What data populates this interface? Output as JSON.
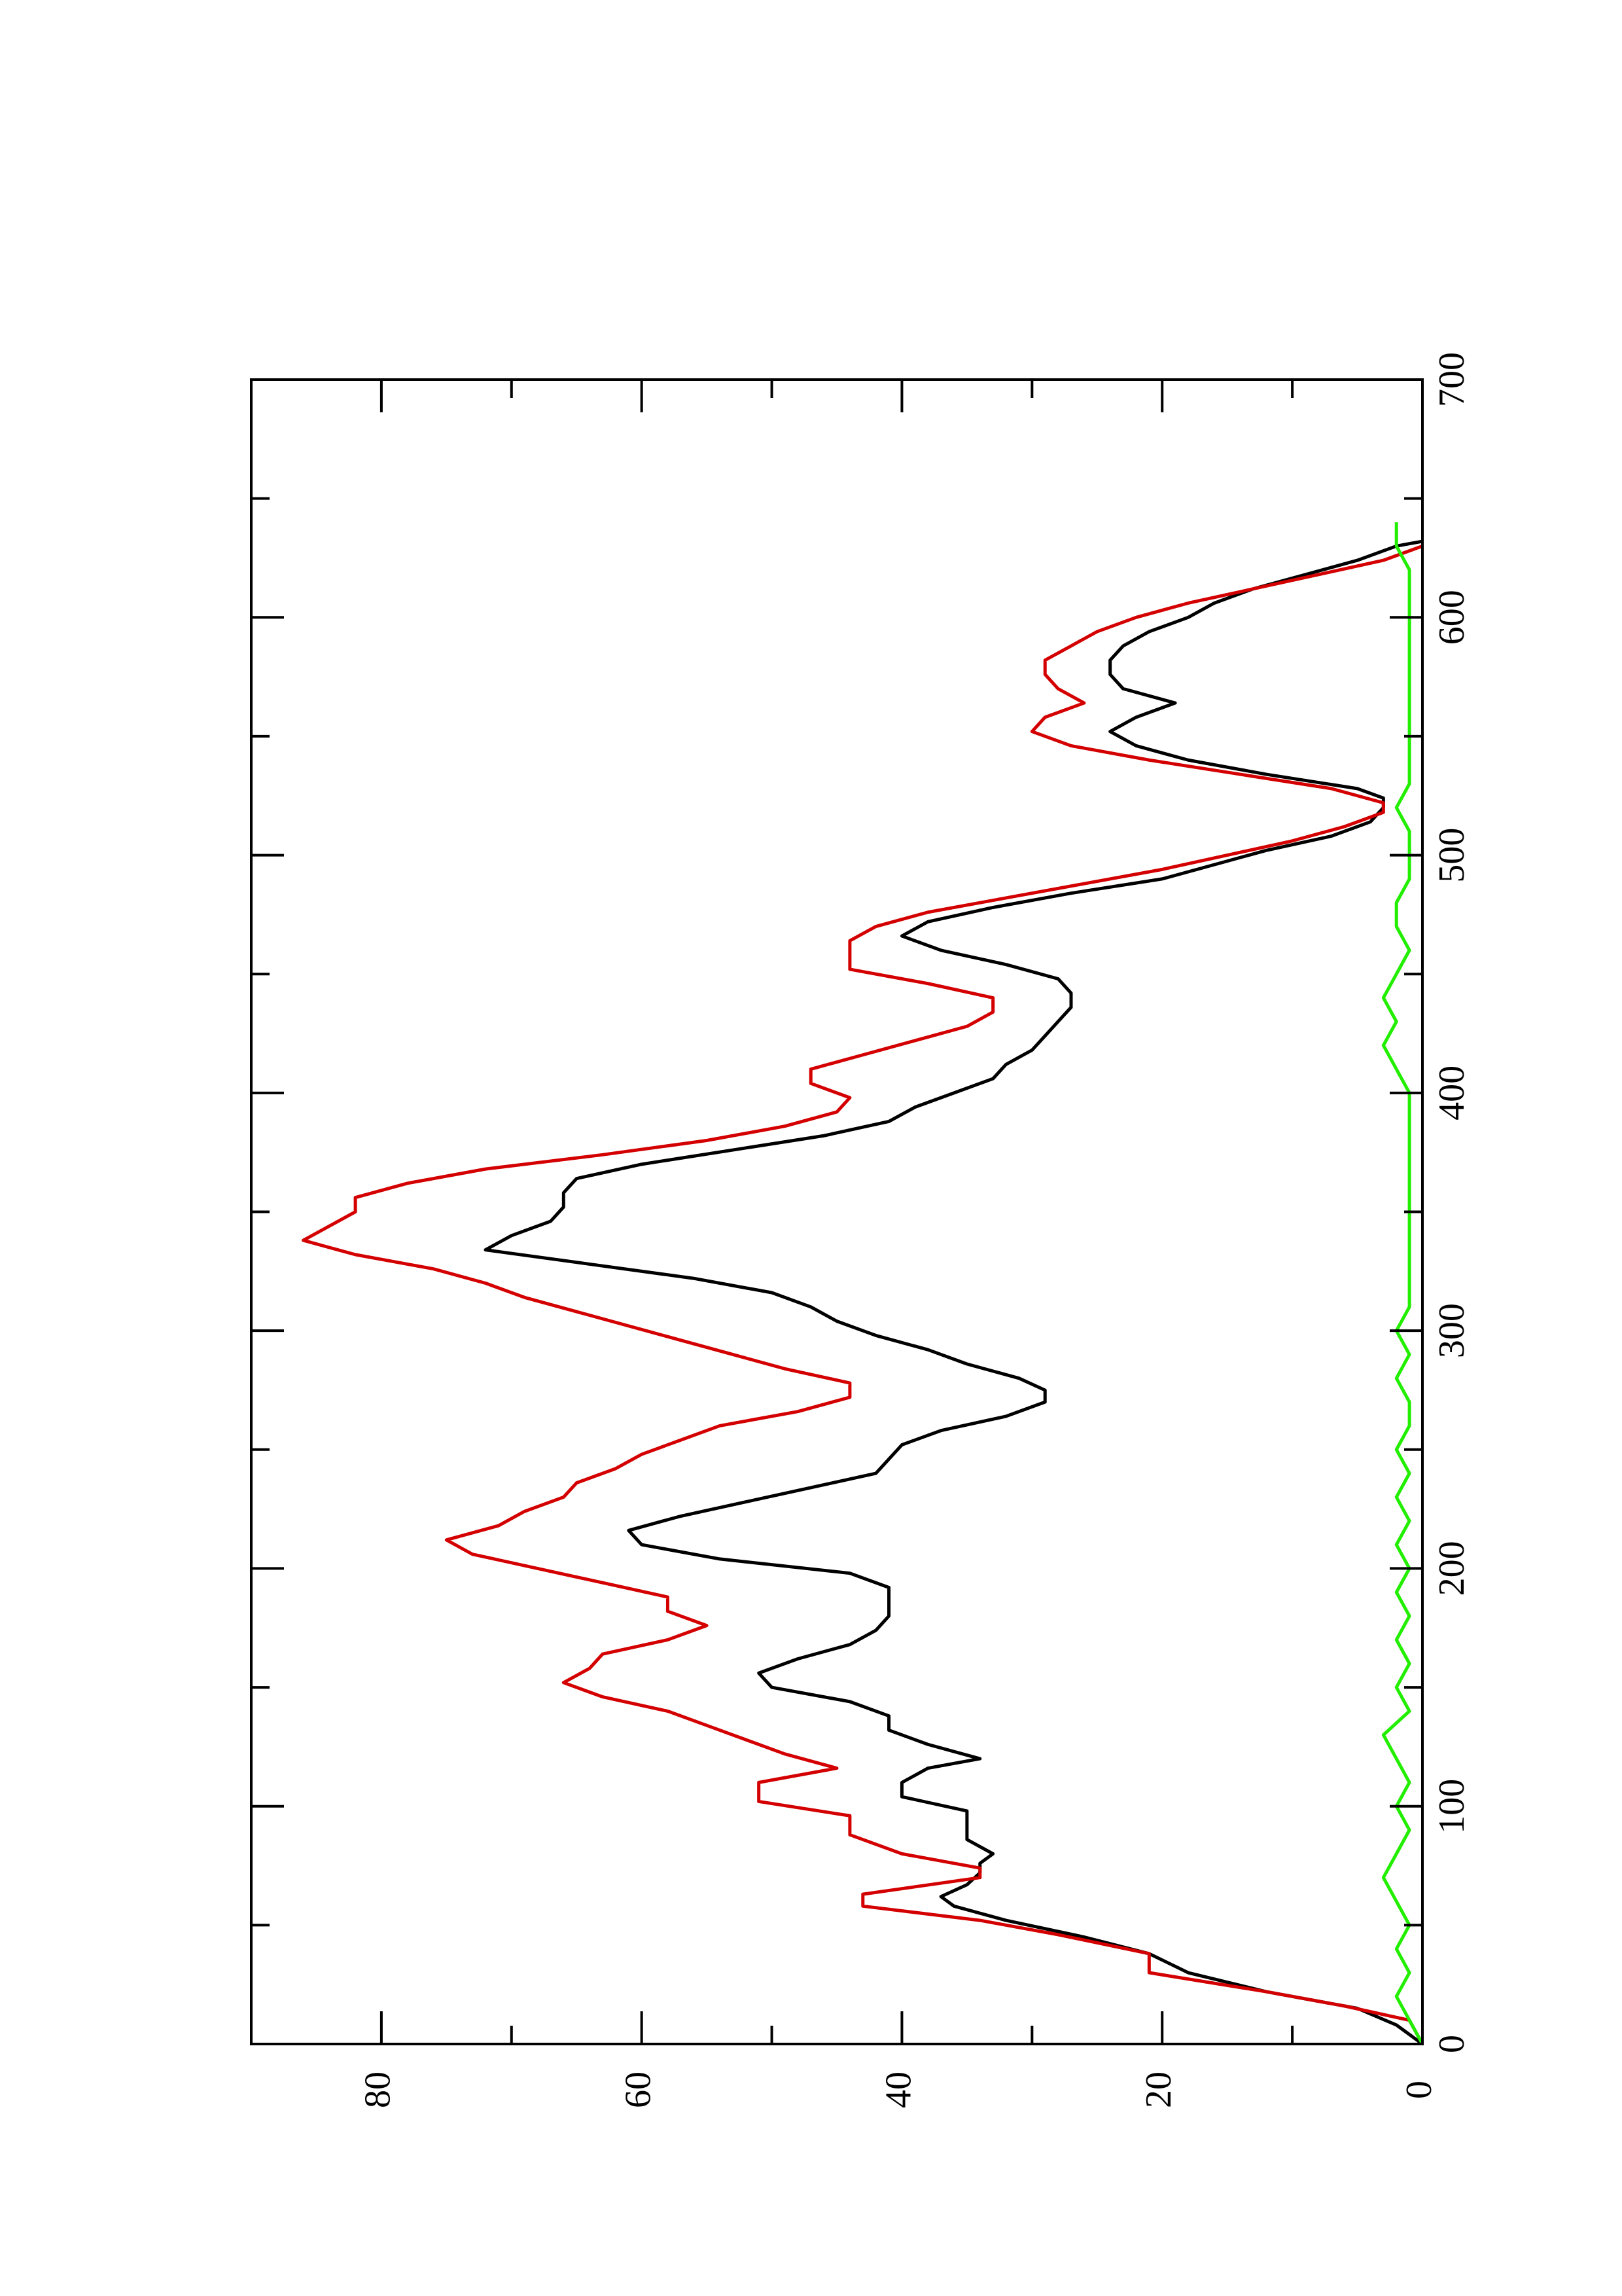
{
  "chart_data": {
    "type": "line",
    "orientation": "rotated-90-counterclockwise",
    "title": "",
    "xlabel": "",
    "ylabel": "",
    "xlim": [
      0,
      700
    ],
    "ylim": [
      0,
      90
    ],
    "x_ticks": [
      0,
      100,
      200,
      300,
      400,
      500,
      600,
      700
    ],
    "y_ticks": [
      0,
      20,
      40,
      60,
      80
    ],
    "grid": false,
    "legend": "none",
    "series": [
      {
        "color": "#000000",
        "points": [
          [
            0,
            0
          ],
          [
            8,
            2
          ],
          [
            15,
            5
          ],
          [
            22,
            12
          ],
          [
            30,
            18
          ],
          [
            38,
            21
          ],
          [
            45,
            26
          ],
          [
            52,
            32
          ],
          [
            58,
            36
          ],
          [
            62,
            37
          ],
          [
            67,
            35
          ],
          [
            72,
            34
          ],
          [
            76,
            34
          ],
          [
            80,
            33
          ],
          [
            86,
            35
          ],
          [
            92,
            35
          ],
          [
            98,
            35
          ],
          [
            104,
            40
          ],
          [
            110,
            40
          ],
          [
            116,
            38
          ],
          [
            120,
            34
          ],
          [
            126,
            38
          ],
          [
            132,
            41
          ],
          [
            138,
            41
          ],
          [
            144,
            44
          ],
          [
            150,
            50
          ],
          [
            156,
            51
          ],
          [
            162,
            48
          ],
          [
            168,
            44
          ],
          [
            174,
            42
          ],
          [
            180,
            41
          ],
          [
            186,
            41
          ],
          [
            192,
            41
          ],
          [
            198,
            44
          ],
          [
            204,
            54
          ],
          [
            210,
            60
          ],
          [
            216,
            61
          ],
          [
            222,
            57
          ],
          [
            228,
            52
          ],
          [
            234,
            47
          ],
          [
            240,
            42
          ],
          [
            246,
            41
          ],
          [
            252,
            40
          ],
          [
            258,
            37
          ],
          [
            264,
            32
          ],
          [
            270,
            29
          ],
          [
            275,
            29
          ],
          [
            280,
            31
          ],
          [
            286,
            35
          ],
          [
            292,
            38
          ],
          [
            298,
            42
          ],
          [
            304,
            45
          ],
          [
            310,
            47
          ],
          [
            316,
            50
          ],
          [
            322,
            56
          ],
          [
            328,
            64
          ],
          [
            334,
            72
          ],
          [
            340,
            70
          ],
          [
            346,
            67
          ],
          [
            352,
            66
          ],
          [
            358,
            66
          ],
          [
            364,
            65
          ],
          [
            370,
            60
          ],
          [
            376,
            53
          ],
          [
            382,
            46
          ],
          [
            388,
            41
          ],
          [
            394,
            39
          ],
          [
            400,
            36
          ],
          [
            406,
            33
          ],
          [
            412,
            32
          ],
          [
            418,
            30
          ],
          [
            424,
            29
          ],
          [
            430,
            28
          ],
          [
            436,
            27
          ],
          [
            442,
            27
          ],
          [
            448,
            28
          ],
          [
            454,
            32
          ],
          [
            460,
            37
          ],
          [
            466,
            40
          ],
          [
            472,
            38
          ],
          [
            478,
            33
          ],
          [
            484,
            27
          ],
          [
            490,
            20
          ],
          [
            496,
            16
          ],
          [
            502,
            12
          ],
          [
            508,
            7
          ],
          [
            514,
            4
          ],
          [
            520,
            3
          ],
          [
            524,
            3
          ],
          [
            528,
            5
          ],
          [
            534,
            12
          ],
          [
            540,
            18
          ],
          [
            546,
            22
          ],
          [
            552,
            24
          ],
          [
            558,
            22
          ],
          [
            564,
            19
          ],
          [
            570,
            23
          ],
          [
            576,
            24
          ],
          [
            582,
            24
          ],
          [
            588,
            23
          ],
          [
            594,
            21
          ],
          [
            600,
            18
          ],
          [
            606,
            16
          ],
          [
            612,
            13
          ],
          [
            618,
            9
          ],
          [
            624,
            5
          ],
          [
            630,
            2
          ],
          [
            632,
            0
          ]
        ]
      },
      {
        "color": "#d40000",
        "points": [
          [
            0,
            0
          ],
          [
            10,
            1
          ],
          [
            16,
            6
          ],
          [
            22,
            12
          ],
          [
            30,
            21
          ],
          [
            38,
            21
          ],
          [
            46,
            28
          ],
          [
            52,
            34
          ],
          [
            58,
            43
          ],
          [
            63,
            43
          ],
          [
            70,
            34
          ],
          [
            74,
            34
          ],
          [
            80,
            40
          ],
          [
            88,
            44
          ],
          [
            96,
            44
          ],
          [
            102,
            51
          ],
          [
            110,
            51
          ],
          [
            116,
            45
          ],
          [
            122,
            49
          ],
          [
            128,
            52
          ],
          [
            134,
            55
          ],
          [
            140,
            58
          ],
          [
            146,
            63
          ],
          [
            152,
            66
          ],
          [
            158,
            64
          ],
          [
            164,
            63
          ],
          [
            170,
            58
          ],
          [
            176,
            55
          ],
          [
            182,
            58
          ],
          [
            188,
            58
          ],
          [
            194,
            63
          ],
          [
            200,
            68
          ],
          [
            206,
            73
          ],
          [
            212,
            75
          ],
          [
            218,
            71
          ],
          [
            224,
            69
          ],
          [
            230,
            66
          ],
          [
            236,
            65
          ],
          [
            242,
            62
          ],
          [
            248,
            60
          ],
          [
            254,
            57
          ],
          [
            260,
            54
          ],
          [
            266,
            48
          ],
          [
            272,
            44
          ],
          [
            278,
            44
          ],
          [
            284,
            49
          ],
          [
            290,
            53
          ],
          [
            296,
            57
          ],
          [
            302,
            61
          ],
          [
            308,
            65
          ],
          [
            314,
            69
          ],
          [
            320,
            72
          ],
          [
            326,
            76
          ],
          [
            332,
            82
          ],
          [
            338,
            86
          ],
          [
            344,
            84
          ],
          [
            350,
            82
          ],
          [
            356,
            82
          ],
          [
            362,
            78
          ],
          [
            368,
            72
          ],
          [
            374,
            63
          ],
          [
            380,
            55
          ],
          [
            386,
            49
          ],
          [
            392,
            45
          ],
          [
            398,
            44
          ],
          [
            404,
            47
          ],
          [
            410,
            47
          ],
          [
            416,
            43
          ],
          [
            422,
            39
          ],
          [
            428,
            35
          ],
          [
            434,
            33
          ],
          [
            440,
            33
          ],
          [
            446,
            38
          ],
          [
            452,
            44
          ],
          [
            458,
            44
          ],
          [
            464,
            44
          ],
          [
            470,
            42
          ],
          [
            476,
            38
          ],
          [
            482,
            32
          ],
          [
            488,
            26
          ],
          [
            494,
            20
          ],
          [
            500,
            15
          ],
          [
            506,
            10
          ],
          [
            512,
            6
          ],
          [
            518,
            3
          ],
          [
            522,
            3
          ],
          [
            528,
            7
          ],
          [
            534,
            14
          ],
          [
            540,
            21
          ],
          [
            546,
            27
          ],
          [
            552,
            30
          ],
          [
            558,
            29
          ],
          [
            564,
            26
          ],
          [
            570,
            28
          ],
          [
            576,
            29
          ],
          [
            582,
            29
          ],
          [
            588,
            27
          ],
          [
            594,
            25
          ],
          [
            600,
            22
          ],
          [
            606,
            18
          ],
          [
            612,
            13
          ],
          [
            618,
            8
          ],
          [
            624,
            3
          ],
          [
            630,
            0
          ]
        ]
      },
      {
        "color": "#22ee00",
        "points": [
          [
            0,
            0
          ],
          [
            10,
            1
          ],
          [
            20,
            2
          ],
          [
            30,
            1
          ],
          [
            40,
            2
          ],
          [
            50,
            1
          ],
          [
            60,
            2
          ],
          [
            70,
            3
          ],
          [
            80,
            2
          ],
          [
            90,
            1
          ],
          [
            100,
            2
          ],
          [
            110,
            1
          ],
          [
            120,
            2
          ],
          [
            130,
            3
          ],
          [
            140,
            1
          ],
          [
            150,
            2
          ],
          [
            160,
            1
          ],
          [
            170,
            2
          ],
          [
            180,
            1
          ],
          [
            190,
            2
          ],
          [
            200,
            1
          ],
          [
            210,
            2
          ],
          [
            220,
            1
          ],
          [
            230,
            2
          ],
          [
            240,
            1
          ],
          [
            250,
            2
          ],
          [
            260,
            1
          ],
          [
            270,
            1
          ],
          [
            280,
            2
          ],
          [
            290,
            1
          ],
          [
            300,
            2
          ],
          [
            310,
            1
          ],
          [
            320,
            1
          ],
          [
            330,
            1
          ],
          [
            340,
            1
          ],
          [
            350,
            1
          ],
          [
            360,
            1
          ],
          [
            370,
            1
          ],
          [
            380,
            1
          ],
          [
            390,
            1
          ],
          [
            400,
            1
          ],
          [
            410,
            2
          ],
          [
            420,
            3
          ],
          [
            430,
            2
          ],
          [
            440,
            3
          ],
          [
            450,
            2
          ],
          [
            460,
            1
          ],
          [
            470,
            2
          ],
          [
            480,
            2
          ],
          [
            490,
            1
          ],
          [
            500,
            1
          ],
          [
            510,
            1
          ],
          [
            520,
            2
          ],
          [
            530,
            1
          ],
          [
            540,
            1
          ],
          [
            550,
            1
          ],
          [
            560,
            1
          ],
          [
            570,
            1
          ],
          [
            580,
            1
          ],
          [
            590,
            1
          ],
          [
            600,
            1
          ],
          [
            610,
            1
          ],
          [
            620,
            1
          ],
          [
            630,
            2
          ],
          [
            640,
            2
          ]
        ]
      }
    ]
  }
}
